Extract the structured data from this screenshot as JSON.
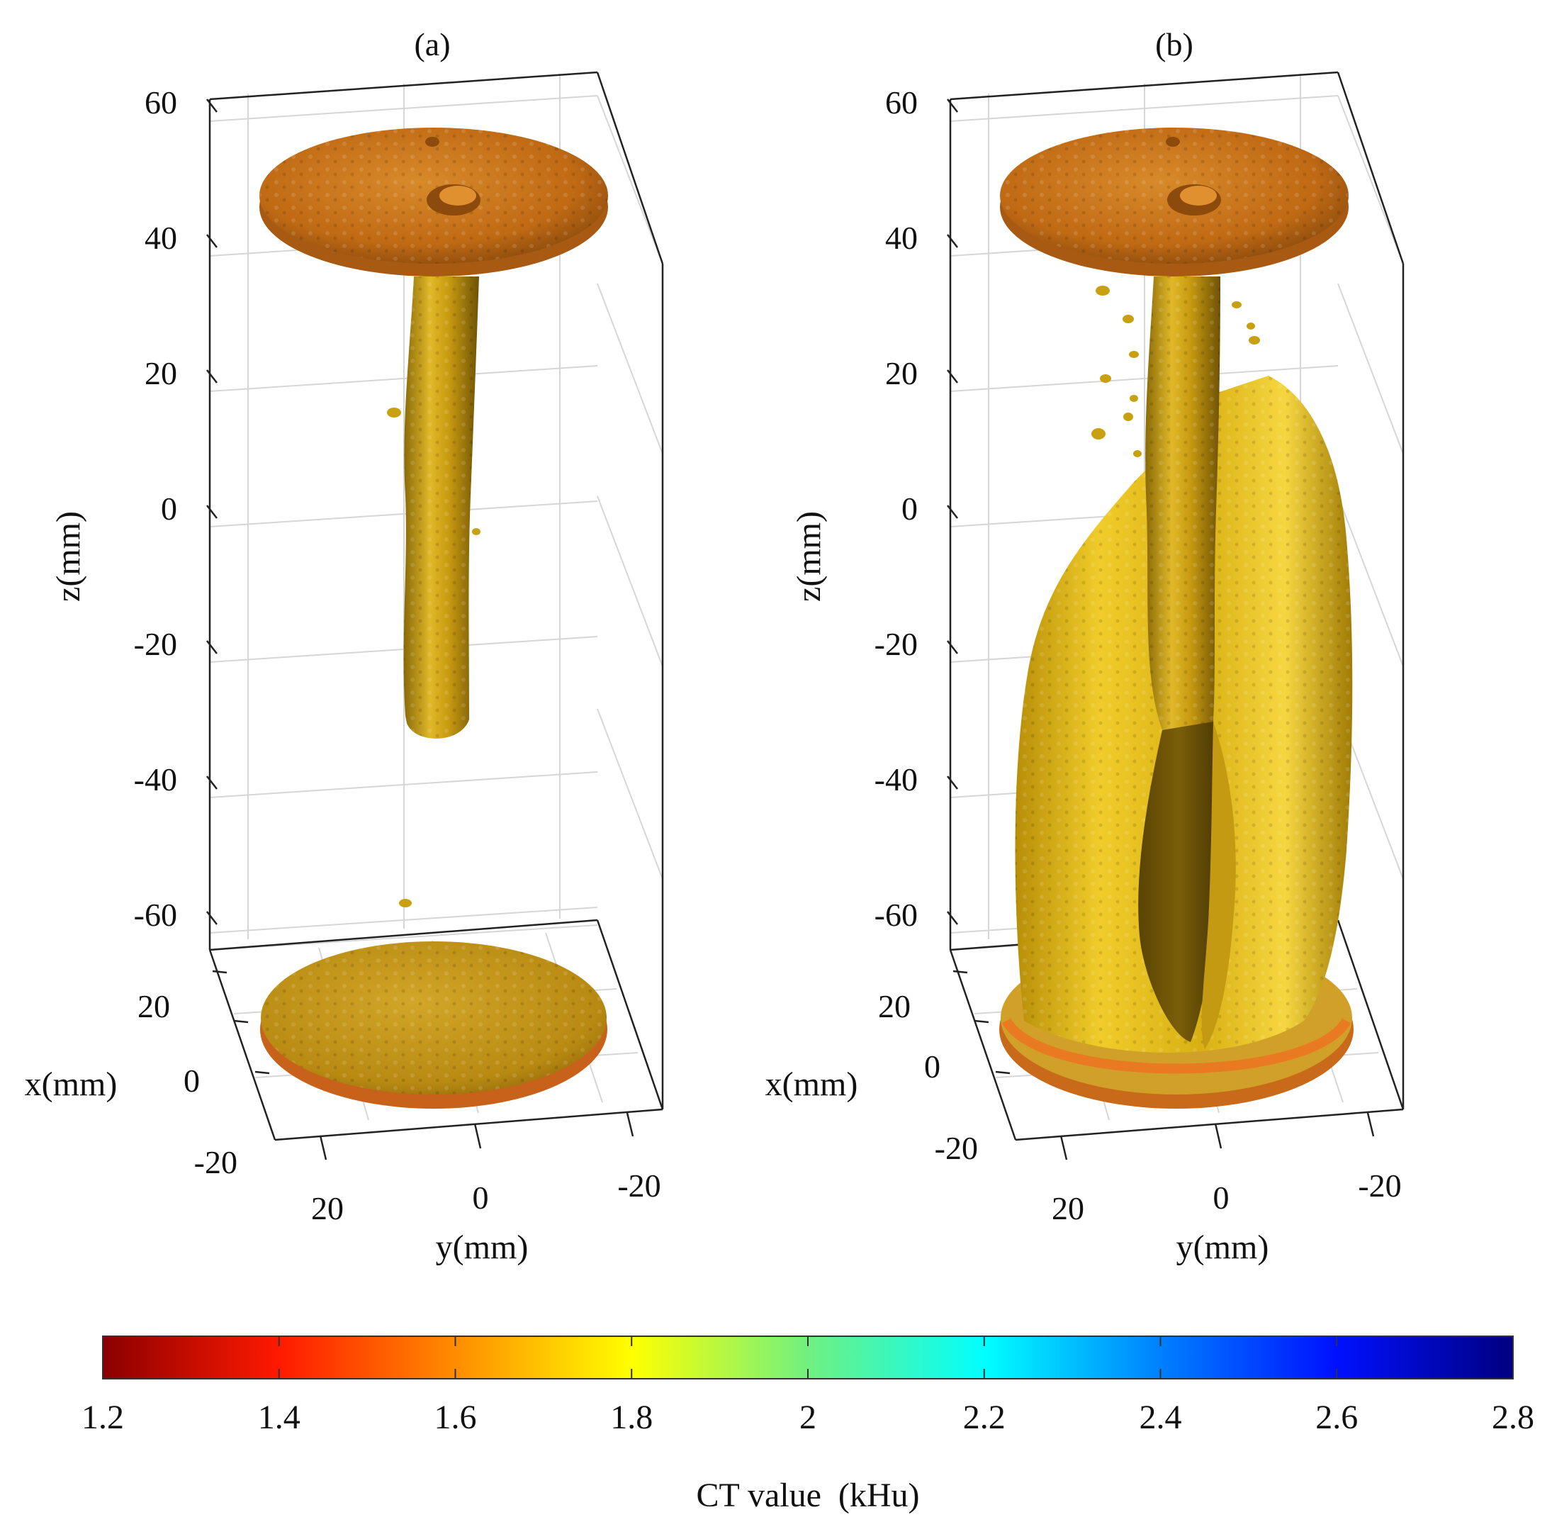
{
  "chart_data": {
    "type": "3d-volume-render",
    "panels": [
      {
        "id": "a",
        "title": "(a)",
        "z_ticks": [
          60,
          40,
          20,
          0,
          -20,
          -40,
          -60
        ],
        "x_ticks": [
          20,
          0,
          -20
        ],
        "y_ticks": [
          20,
          0,
          -20
        ],
        "zlabel": "z(mm)",
        "xlabel": "x(mm)",
        "ylabel": "y(mm)",
        "zlim": [
          -65,
          62
        ],
        "xlim": [
          -25,
          25
        ],
        "ylim": [
          -25,
          25
        ],
        "objects": [
          "top electrode disk",
          "conductive channel",
          "bottom electrode disk"
        ],
        "channel_z_range": [
          -32,
          38
        ]
      },
      {
        "id": "b",
        "title": "(b)",
        "z_ticks": [
          60,
          40,
          20,
          0,
          -20,
          -40,
          -60
        ],
        "x_ticks": [
          20,
          0,
          -20
        ],
        "y_ticks": [
          20,
          0,
          -20
        ],
        "zlabel": "z(mm)",
        "xlabel": "x(mm)",
        "ylabel": "y(mm)",
        "zlim": [
          -65,
          62
        ],
        "xlim": [
          -25,
          25
        ],
        "ylim": [
          -25,
          25
        ],
        "objects": [
          "top electrode disk",
          "conductive channel",
          "fractured shell",
          "bottom electrode disk"
        ],
        "channel_z_range": [
          -66,
          38
        ],
        "shell_z_range": [
          -68,
          20
        ]
      }
    ],
    "colorbar": {
      "label": "CT value  (kHu)",
      "min": 1.2,
      "max": 2.8,
      "ticks": [
        1.2,
        1.4,
        1.6,
        1.8,
        2,
        2.2,
        2.4,
        2.6,
        2.8
      ],
      "tick_labels": [
        "1.2",
        "1.4",
        "1.6",
        "1.8",
        "2",
        "2.2",
        "2.4",
        "2.6",
        "2.8"
      ],
      "colormap": "jet-reversed",
      "stops": [
        {
          "value": 1.2,
          "color": "#8b0000"
        },
        {
          "value": 1.4,
          "color": "#ff1a00"
        },
        {
          "value": 1.6,
          "color": "#ff8c00"
        },
        {
          "value": 1.8,
          "color": "#ffff00"
        },
        {
          "value": 2.0,
          "color": "#70f080"
        },
        {
          "value": 2.2,
          "color": "#00ffff"
        },
        {
          "value": 2.4,
          "color": "#0080ff"
        },
        {
          "value": 2.6,
          "color": "#0010ff"
        },
        {
          "value": 2.8,
          "color": "#000080"
        }
      ]
    }
  },
  "colors": {
    "disk_top": "#c8701a",
    "channel": "#c89a10",
    "shell": "#e0bc10",
    "axis": "#222222",
    "grid": "#d0d0d0"
  }
}
